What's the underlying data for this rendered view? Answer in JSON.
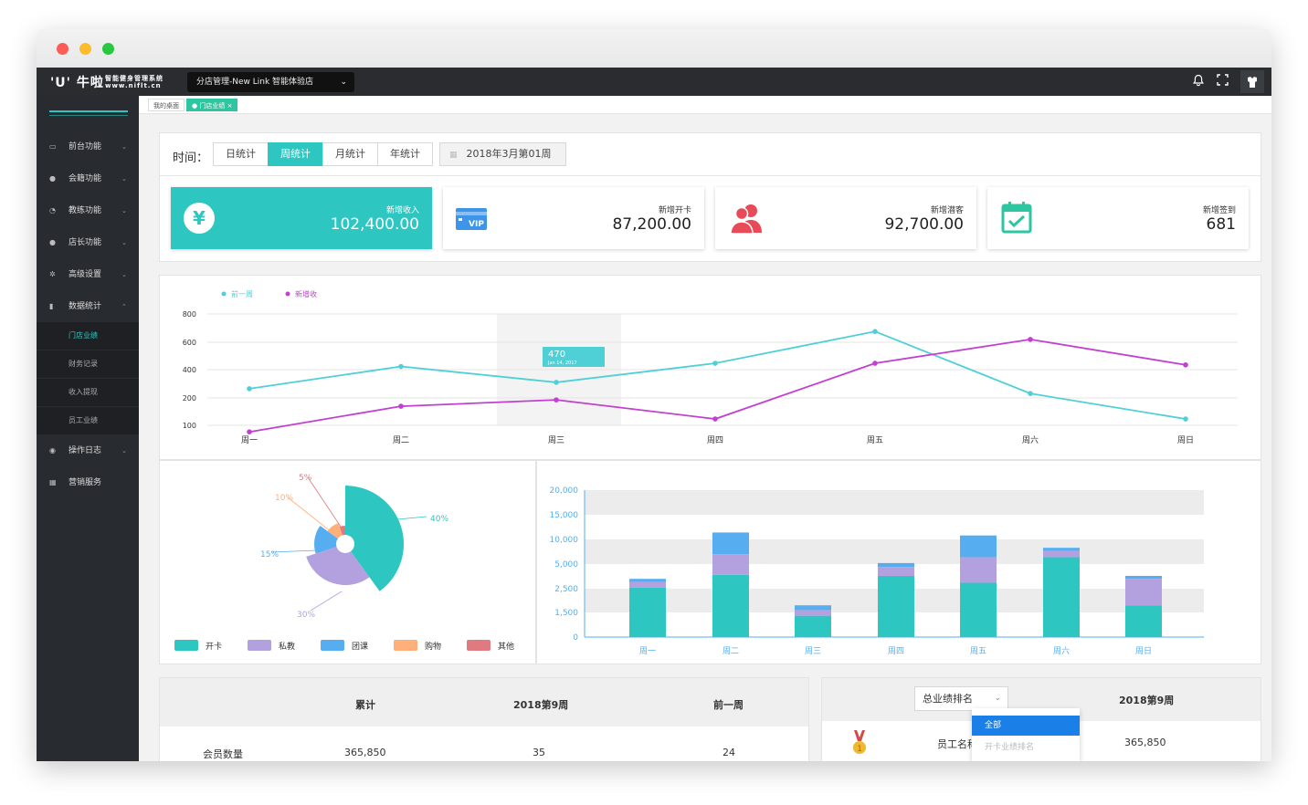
{
  "app": {
    "logo": "'U' 牛啦",
    "logo_sub": "智能健身管理系统 www.niflt.cn",
    "store_select": "分店管理-New Link 智能体验店"
  },
  "colors": {
    "accent": "#2ec6c0",
    "sidebar": "#282b2f",
    "topbar": "#2a2c2f",
    "purple": "#c33fd1",
    "blue": "#56aef0"
  },
  "icons": {
    "bell": "bell-icon",
    "fullscreen": "fullscreen-icon",
    "user": "user-icon"
  },
  "sidebar": {
    "items": [
      {
        "label": "前台功能"
      },
      {
        "label": "会籍功能"
      },
      {
        "label": "教练功能"
      },
      {
        "label": "店长功能"
      },
      {
        "label": "高级设置"
      },
      {
        "label": "数据统计"
      },
      {
        "label": "操作日志"
      },
      {
        "label": "营销服务"
      }
    ],
    "subitems": [
      {
        "label": "门店业绩"
      },
      {
        "label": "财务记录"
      },
      {
        "label": "收入提现"
      },
      {
        "label": "员工业绩"
      }
    ]
  },
  "tabs": {
    "desktop": "我的桌面",
    "current": "门店业绩",
    "close": "×"
  },
  "filter": {
    "label": "时间：",
    "buttons": [
      "日统计",
      "周统计",
      "月统计",
      "年统计"
    ],
    "active": "周统计",
    "date": "2018年3月第01周"
  },
  "stats": [
    {
      "label": "新增收入",
      "value": "102,400.00",
      "icon": "yen-icon"
    },
    {
      "label": "新增开卡",
      "value": "87,200.00",
      "icon": "vip-card-icon"
    },
    {
      "label": "新增潜客",
      "value": "92,700.00",
      "icon": "users-icon"
    },
    {
      "label": "新增签到",
      "value": "681",
      "icon": "calendar-check-icon"
    }
  ],
  "chart_data": [
    {
      "type": "line",
      "categories": [
        "周一",
        "周二",
        "周三",
        "周四",
        "周五",
        "周六",
        "周日"
      ],
      "series": [
        {
          "name": "前一周",
          "color": "#4ed0d6",
          "values": [
            330,
            470,
            370,
            490,
            690,
            300,
            140
          ]
        },
        {
          "name": "新增收",
          "color": "#c33fd1",
          "values": [
            40,
            220,
            260,
            140,
            490,
            640,
            480
          ]
        }
      ],
      "yticks": [
        "800",
        "600",
        "400",
        "200",
        "100"
      ],
      "tooltip": {
        "value": "470",
        "date": "Jan 14, 2017"
      },
      "grid": true,
      "legend": "top-left"
    },
    {
      "type": "pie",
      "slices": [
        {
          "name": "开卡",
          "value": 40,
          "label": "40%",
          "color": "#2ec6c0"
        },
        {
          "name": "私教",
          "value": 30,
          "label": "30%",
          "color": "#b3a0de"
        },
        {
          "name": "团课",
          "value": 15,
          "label": "15%",
          "color": "#56aef0"
        },
        {
          "name": "购物",
          "value": 10,
          "label": "10%",
          "color": "#ffb07a"
        },
        {
          "name": "其他",
          "value": 5,
          "label": "5%",
          "color": "#e07a80"
        }
      ],
      "legend": "bottom"
    },
    {
      "type": "bar",
      "stacked": true,
      "categories": [
        "周一",
        "周二",
        "周三",
        "周四",
        "周五",
        "周六",
        "周日"
      ],
      "series": [
        {
          "name": "开卡",
          "color": "#2ec6c0",
          "values": [
            2600,
            3900,
            1300,
            3800,
            3100,
            6400,
            1800
          ]
        },
        {
          "name": "私教",
          "color": "#b3a0de",
          "values": [
            600,
            3100,
            300,
            900,
            3300,
            1300,
            1700
          ]
        },
        {
          "name": "团课",
          "color": "#56aef0",
          "values": [
            300,
            4400,
            200,
            500,
            4400,
            600,
            300
          ]
        }
      ],
      "yticks": [
        "20,000",
        "15,000",
        "10,000",
        "5,000",
        "2,500",
        "1,500",
        "0"
      ]
    }
  ],
  "table_left": {
    "headers": [
      "累计",
      "2018第9周",
      "前一周"
    ],
    "rows": [
      {
        "label": "会员数量",
        "cells": [
          "365,850",
          "35",
          "24"
        ]
      }
    ]
  },
  "table_right": {
    "select": "总业绩排名",
    "week": "2018第9周",
    "dropdown": [
      "全部",
      "开卡业绩排名"
    ],
    "row": {
      "name": "员工名称",
      "value": "365,850"
    }
  }
}
